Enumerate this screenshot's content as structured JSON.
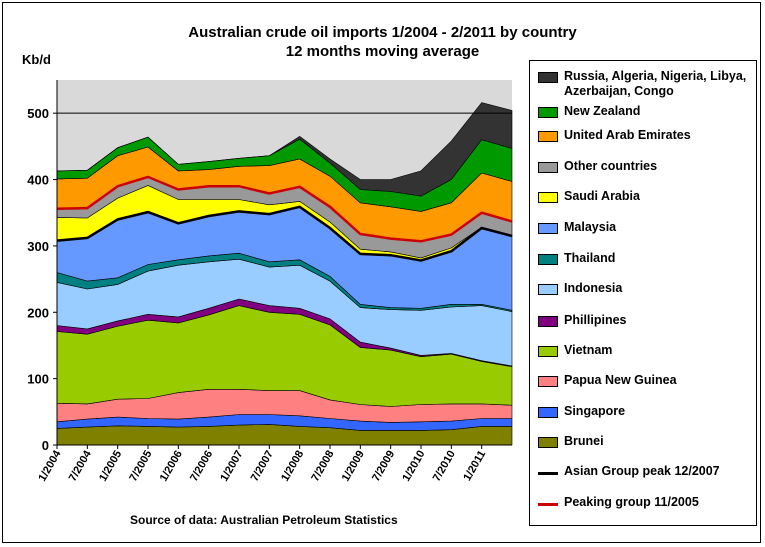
{
  "title_line1": "Australian crude oil imports 1/2004 - 2/2011 by country",
  "title_line2": "12 months moving average",
  "y_axis_label": "Kb/d",
  "source": "Source of data:  Australian  Petroleum  Statistics",
  "colors": {
    "Brunei": "#808000",
    "Singapore": "#3366ff",
    "Papua New Guinea": "#ff8080",
    "Vietnam": "#99cc00",
    "Phillipines": "#800080",
    "Indonesia": "#99ccff",
    "Thailand": "#008080",
    "Malaysia": "#6699ff",
    "Saudi Arabia": "#ffff00",
    "Other countries": "#999999",
    "United Arab Emirates": "#ff9900",
    "New Zealand": "#009900",
    "Russia, Algeria, Nigeria, Libya, Azerbaijan, Congo": "#333333",
    "Asian Group peak 12/2007": "#000000",
    "Peaking group 11/2005": "#cc0000",
    "plot_background": "#d9d9d9"
  },
  "legend": [
    {
      "label": "Russia, Algeria, Nigeria, Libya, Azerbaijan, Congo",
      "kind": "swatch",
      "color": "#333333"
    },
    {
      "label": "New Zealand",
      "kind": "swatch",
      "color": "#009900"
    },
    {
      "label": "United Arab Emirates",
      "kind": "swatch",
      "color": "#ff9900"
    },
    {
      "label": "Other countries",
      "kind": "swatch",
      "color": "#999999"
    },
    {
      "label": "Saudi Arabia",
      "kind": "swatch",
      "color": "#ffff00"
    },
    {
      "label": "Malaysia",
      "kind": "swatch",
      "color": "#6699ff"
    },
    {
      "label": "Thailand",
      "kind": "swatch",
      "color": "#008080"
    },
    {
      "label": "Indonesia",
      "kind": "swatch",
      "color": "#99ccff"
    },
    {
      "label": "Phillipines",
      "kind": "swatch",
      "color": "#800080"
    },
    {
      "label": "Vietnam",
      "kind": "swatch",
      "color": "#99cc00"
    },
    {
      "label": "Papua New Guinea",
      "kind": "swatch",
      "color": "#ff8080"
    },
    {
      "label": "Singapore",
      "kind": "swatch",
      "color": "#3366ff"
    },
    {
      "label": "Brunei",
      "kind": "swatch",
      "color": "#808000"
    },
    {
      "label": "Asian Group peak 12/2007",
      "kind": "line",
      "color": "#000000"
    },
    {
      "label": "Peaking group 11/2005",
      "kind": "line",
      "color": "#cc0000"
    }
  ],
  "chart_data": {
    "type": "area",
    "stacked": true,
    "title": "Australian crude oil imports 1/2004 - 2/2011 by country",
    "subtitle": "12 months moving average",
    "ylabel": "Kb/d",
    "ylim": [
      0,
      550
    ],
    "yticks": [
      0,
      100,
      200,
      300,
      400,
      500
    ],
    "reference_line_y": 500,
    "legend_position": "right",
    "x": [
      "1/2004",
      "7/2004",
      "1/2005",
      "7/2005",
      "1/2006",
      "7/2006",
      "1/2007",
      "7/2007",
      "1/2008",
      "7/2008",
      "1/2009",
      "7/2009",
      "1/2010",
      "7/2010",
      "1/2011",
      "2/2011"
    ],
    "xtick_labels": [
      "1/2004",
      "7/2004",
      "1/2005",
      "7/2005",
      "1/2006",
      "7/2006",
      "1/2007",
      "7/2007",
      "1/2008",
      "7/2008",
      "1/2009",
      "7/2009",
      "1/2010",
      "7/2010",
      "1/2011"
    ],
    "series": [
      {
        "name": "Brunei",
        "values": [
          25,
          27,
          29,
          28,
          27,
          28,
          30,
          31,
          28,
          26,
          22,
          22,
          22,
          23,
          28,
          28
        ]
      },
      {
        "name": "Singapore",
        "values": [
          10,
          12,
          13,
          12,
          12,
          14,
          16,
          15,
          16,
          14,
          14,
          12,
          13,
          13,
          12,
          12
        ]
      },
      {
        "name": "Papua New Guinea",
        "values": [
          28,
          23,
          27,
          30,
          40,
          42,
          38,
          36,
          38,
          28,
          25,
          24,
          26,
          26,
          22,
          20
        ]
      },
      {
        "name": "Vietnam",
        "values": [
          108,
          105,
          110,
          118,
          105,
          112,
          126,
          118,
          115,
          113,
          86,
          85,
          72,
          75,
          64,
          58
        ]
      },
      {
        "name": "Phillipines",
        "values": [
          9,
          8,
          8,
          9,
          9,
          10,
          10,
          10,
          9,
          9,
          8,
          3,
          2,
          1,
          1,
          1
        ]
      },
      {
        "name": "Indonesia",
        "values": [
          65,
          60,
          55,
          65,
          78,
          70,
          60,
          58,
          65,
          57,
          52,
          58,
          68,
          70,
          83,
          82
        ]
      },
      {
        "name": "Thailand",
        "values": [
          15,
          12,
          10,
          10,
          8,
          9,
          9,
          8,
          8,
          7,
          5,
          3,
          3,
          4,
          2,
          2
        ]
      },
      {
        "name": "Malaysia",
        "values": [
          48,
          65,
          88,
          79,
          55,
          60,
          63,
          72,
          80,
          73,
          76,
          79,
          72,
          80,
          115,
          112
        ]
      },
      {
        "name": "Saudi Arabia",
        "values": [
          35,
          30,
          32,
          40,
          36,
          25,
          18,
          14,
          8,
          9,
          7,
          5,
          4,
          5,
          1,
          1
        ]
      },
      {
        "name": "Other countries",
        "values": [
          13,
          15,
          18,
          13,
          15,
          20,
          20,
          17,
          22,
          23,
          23,
          20,
          25,
          20,
          22,
          21
        ]
      },
      {
        "name": "United Arab Emirates",
        "values": [
          45,
          45,
          46,
          45,
          28,
          25,
          30,
          42,
          42,
          46,
          47,
          48,
          45,
          48,
          60,
          60
        ]
      },
      {
        "name": "New Zealand",
        "values": [
          12,
          12,
          12,
          15,
          10,
          12,
          12,
          15,
          30,
          20,
          20,
          23,
          23,
          35,
          50,
          50
        ]
      },
      {
        "name": "Russia, Algeria, Nigeria, Libya, Azerbaijan, Congo",
        "values": [
          0,
          0,
          0,
          0,
          0,
          0,
          0,
          0,
          4,
          6,
          15,
          18,
          38,
          58,
          56,
          57
        ]
      }
    ],
    "lines": [
      {
        "name": "Asian Group peak 12/2007",
        "color": "#000000"
      },
      {
        "name": "Peaking group 11/2005",
        "color": "#cc0000"
      }
    ]
  }
}
